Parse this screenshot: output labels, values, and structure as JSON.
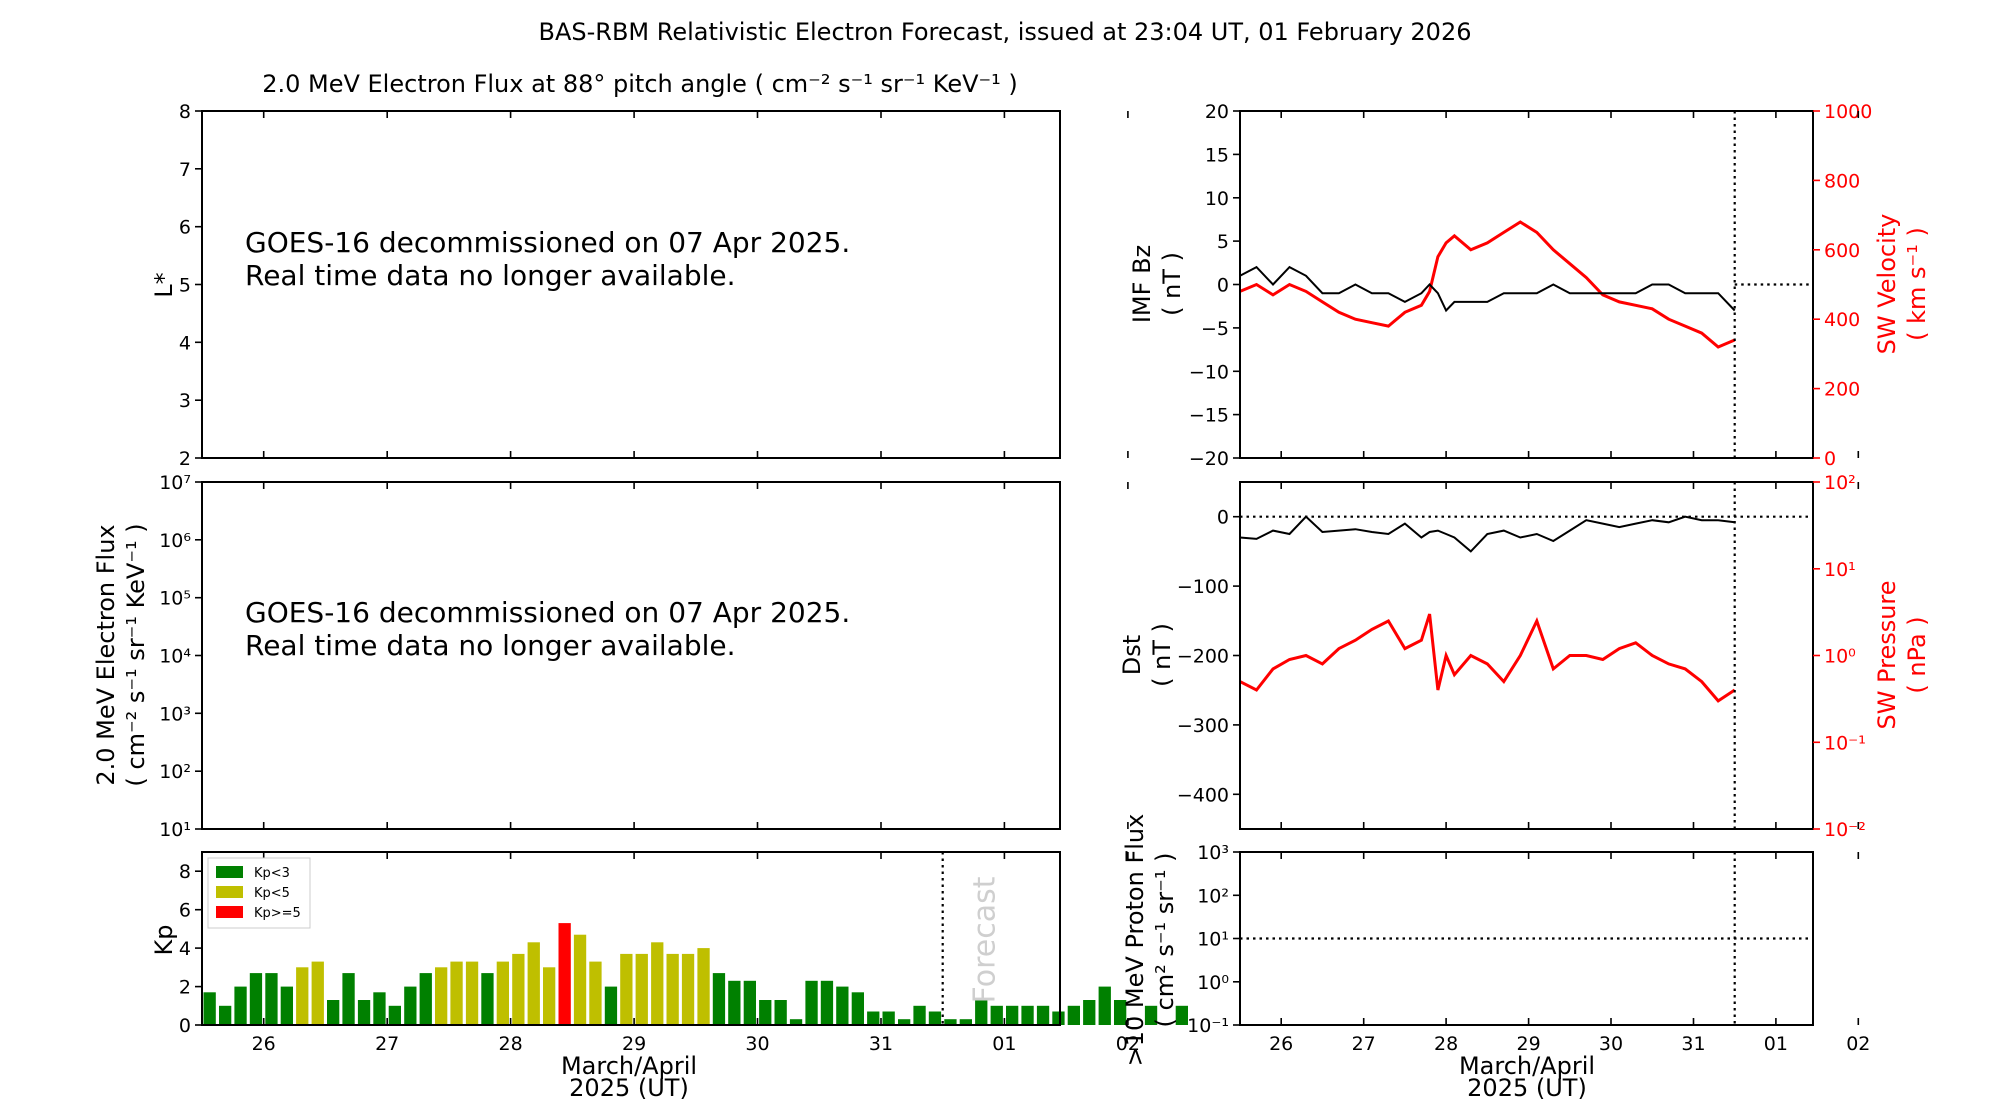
{
  "title": "BAS-RBM Relativistic Electron Forecast, issued at 23:04 UT, 01 February 2026",
  "colors": {
    "quiet": "#008000",
    "moderate": "#bfbf00",
    "storm": "#ff0000",
    "imf": "#000000",
    "sw": "#ff0000"
  },
  "chart_data": [
    {
      "id": "lstar",
      "type": "scatter",
      "title": "2.0 MeV Electron Flux at 88° pitch angle ( cm⁻² s⁻¹ sr⁻¹ KeV⁻¹ )",
      "ylabel": "L*",
      "ylim": [
        2,
        8
      ],
      "yticks": [
        "2",
        "3",
        "4",
        "5",
        "6",
        "7",
        "8"
      ],
      "message_line1": "GOES-16 decommissioned on 07 Apr 2025.",
      "message_line2": "Real time data no longer available."
    },
    {
      "id": "eflux",
      "type": "line",
      "ylabel": "2.0 MeV Electron Flux",
      "ylabel_units": "( cm⁻² s⁻¹ sr⁻¹ KeV⁻¹ )",
      "yscale": "log",
      "ylim_exp": [
        1,
        7
      ],
      "yticks": [
        "10¹",
        "10²",
        "10³",
        "10⁴",
        "10⁵",
        "10⁶",
        "10⁷"
      ],
      "message_line1": "GOES-16 decommissioned on 07 Apr 2025.",
      "message_line2": "Real time data no longer available."
    },
    {
      "id": "kp",
      "type": "bar",
      "ylabel": "Kp",
      "ylim": [
        0,
        9
      ],
      "yticks": [
        "0",
        "2",
        "4",
        "6",
        "8"
      ],
      "xlabel_line1": "March/April",
      "xlabel_line2": "2025 (UT)",
      "xticks": [
        "26",
        "27",
        "28",
        "29",
        "30",
        "31",
        "01",
        "02"
      ],
      "xlim_days": [
        -0.5,
        6.45
      ],
      "forecast_start_day": 5.5,
      "forecast_label": "Forecast",
      "legend": [
        "Kp<3",
        "Kp<5",
        "Kp>=5"
      ],
      "bar_width_days": 0.1,
      "values": [
        1.7,
        1.0,
        2.0,
        2.7,
        2.7,
        2.0,
        3.0,
        3.3,
        1.3,
        2.7,
        1.3,
        1.7,
        1.0,
        2.0,
        2.7,
        3.0,
        3.3,
        3.3,
        2.7,
        3.3,
        3.7,
        4.3,
        3.0,
        5.3,
        4.7,
        3.3,
        2.0,
        3.7,
        3.7,
        4.3,
        3.7,
        3.7,
        4.0,
        2.7,
        2.3,
        2.3,
        1.3,
        1.3,
        0.3,
        2.3,
        2.3,
        2.0,
        1.7,
        0.7,
        0.7,
        0.3,
        1.0,
        0.7,
        0.3,
        0.3,
        1.3,
        1.0,
        1.0,
        1.0,
        1.0,
        0.7,
        1.0,
        1.3,
        2.0,
        1.3,
        null,
        1.0,
        null,
        1.0
      ]
    },
    {
      "id": "imf_sw",
      "type": "line",
      "ylabel": "IMF Bz",
      "ylabel_units": "( nT )",
      "ylim": [
        -20,
        20
      ],
      "yticks": [
        "−20",
        "−15",
        "−10",
        "−5",
        "0",
        "5",
        "10",
        "15",
        "20"
      ],
      "y2label": "SW Velocity",
      "y2label_units": "( km s⁻¹ )",
      "y2lim": [
        0,
        1000
      ],
      "y2ticks": [
        "0",
        "200",
        "400",
        "600",
        "800",
        "1000"
      ],
      "xlim_days": [
        -0.5,
        6.45
      ],
      "now_day": 5.5,
      "zero_line": 0,
      "series": [
        {
          "axis": "left",
          "x": [
            -0.5,
            -0.3,
            -0.1,
            0.1,
            0.3,
            0.5,
            0.7,
            0.9,
            1.1,
            1.3,
            1.5,
            1.7,
            1.8,
            1.9,
            2.0,
            2.1,
            2.3,
            2.5,
            2.7,
            2.9,
            3.1,
            3.3,
            3.5,
            3.7,
            3.9,
            4.1,
            4.3,
            4.5,
            4.7,
            4.9,
            5.1,
            5.3,
            5.5
          ],
          "y": [
            1,
            2,
            0,
            2,
            1,
            -1,
            -1,
            0,
            -1,
            -1,
            -2,
            -1,
            0,
            -1,
            -3,
            -2,
            -2,
            -2,
            -1,
            -1,
            -1,
            0,
            -1,
            -1,
            -1,
            -1,
            -1,
            0,
            0,
            -1,
            -1,
            -1,
            -3
          ]
        },
        {
          "axis": "right",
          "x": [
            -0.5,
            -0.3,
            -0.1,
            0.1,
            0.3,
            0.5,
            0.7,
            0.9,
            1.1,
            1.3,
            1.5,
            1.7,
            1.8,
            1.9,
            2.0,
            2.1,
            2.3,
            2.5,
            2.7,
            2.9,
            3.1,
            3.3,
            3.5,
            3.7,
            3.9,
            4.1,
            4.3,
            4.5,
            4.7,
            4.9,
            5.1,
            5.3,
            5.5
          ],
          "y": [
            480,
            500,
            470,
            500,
            480,
            450,
            420,
            400,
            390,
            380,
            420,
            440,
            480,
            580,
            620,
            640,
            600,
            620,
            650,
            680,
            650,
            600,
            560,
            520,
            470,
            450,
            440,
            430,
            400,
            380,
            360,
            320,
            340
          ]
        }
      ]
    },
    {
      "id": "dst_pressure",
      "type": "line",
      "ylabel": "Dst",
      "ylabel_units": "( nT )",
      "ylim": [
        -450,
        50
      ],
      "yticks": [
        "−400",
        "−300",
        "−200",
        "−100",
        "0"
      ],
      "y2label": "SW Pressure",
      "y2label_units": "( nPa )",
      "y2scale": "log",
      "y2lim_exp": [
        -2,
        2
      ],
      "y2ticks": [
        "10⁻²",
        "10⁻¹",
        "10⁰",
        "10¹",
        "10²"
      ],
      "xlim_days": [
        -0.5,
        6.45
      ],
      "now_day": 5.5,
      "zero_line": 0,
      "series": [
        {
          "axis": "left",
          "x": [
            -0.5,
            -0.3,
            -0.1,
            0.1,
            0.3,
            0.5,
            0.7,
            0.9,
            1.1,
            1.3,
            1.5,
            1.7,
            1.8,
            1.9,
            2.0,
            2.1,
            2.3,
            2.5,
            2.7,
            2.9,
            3.1,
            3.3,
            3.5,
            3.7,
            3.9,
            4.1,
            4.3,
            4.5,
            4.7,
            4.9,
            5.1,
            5.3,
            5.5
          ],
          "y": [
            -30,
            -32,
            -20,
            -25,
            0,
            -22,
            -20,
            -18,
            -22,
            -25,
            -10,
            -30,
            -22,
            -20,
            -25,
            -30,
            -50,
            -25,
            -20,
            -30,
            -25,
            -35,
            -20,
            -5,
            -10,
            -15,
            -10,
            -5,
            -8,
            0,
            -5,
            -5,
            -8
          ]
        },
        {
          "axis": "right",
          "x": [
            -0.5,
            -0.3,
            -0.1,
            0.1,
            0.3,
            0.5,
            0.7,
            0.9,
            1.1,
            1.3,
            1.5,
            1.7,
            1.8,
            1.9,
            2.0,
            2.1,
            2.3,
            2.5,
            2.7,
            2.9,
            3.1,
            3.3,
            3.5,
            3.7,
            3.9,
            4.1,
            4.3,
            4.5,
            4.7,
            4.9,
            5.1,
            5.3,
            5.5
          ],
          "y": [
            0.5,
            0.4,
            0.7,
            0.9,
            1.0,
            0.8,
            1.2,
            1.5,
            2.0,
            2.5,
            1.2,
            1.5,
            3.0,
            0.4,
            1.0,
            0.6,
            1.0,
            0.8,
            0.5,
            1.0,
            2.5,
            0.7,
            1.0,
            1.0,
            0.9,
            1.2,
            1.4,
            1.0,
            0.8,
            0.7,
            0.5,
            0.3,
            0.4
          ]
        }
      ]
    },
    {
      "id": "proton",
      "type": "line",
      "ylabel": ">10 MeV Proton Flux",
      "ylabel_units": "( cm² s⁻¹ sr⁻¹ )",
      "yscale": "log",
      "ylim_exp": [
        -1,
        3
      ],
      "yticks": [
        "10⁻¹",
        "10⁰",
        "10¹",
        "10²",
        "10³"
      ],
      "threshold": 10,
      "xlabel_line1": "March/April",
      "xlabel_line2": "2025 (UT)",
      "xticks": [
        "26",
        "27",
        "28",
        "29",
        "30",
        "31",
        "01",
        "02"
      ],
      "xlim_days": [
        -0.5,
        6.45
      ],
      "now_day": 5.5
    }
  ]
}
